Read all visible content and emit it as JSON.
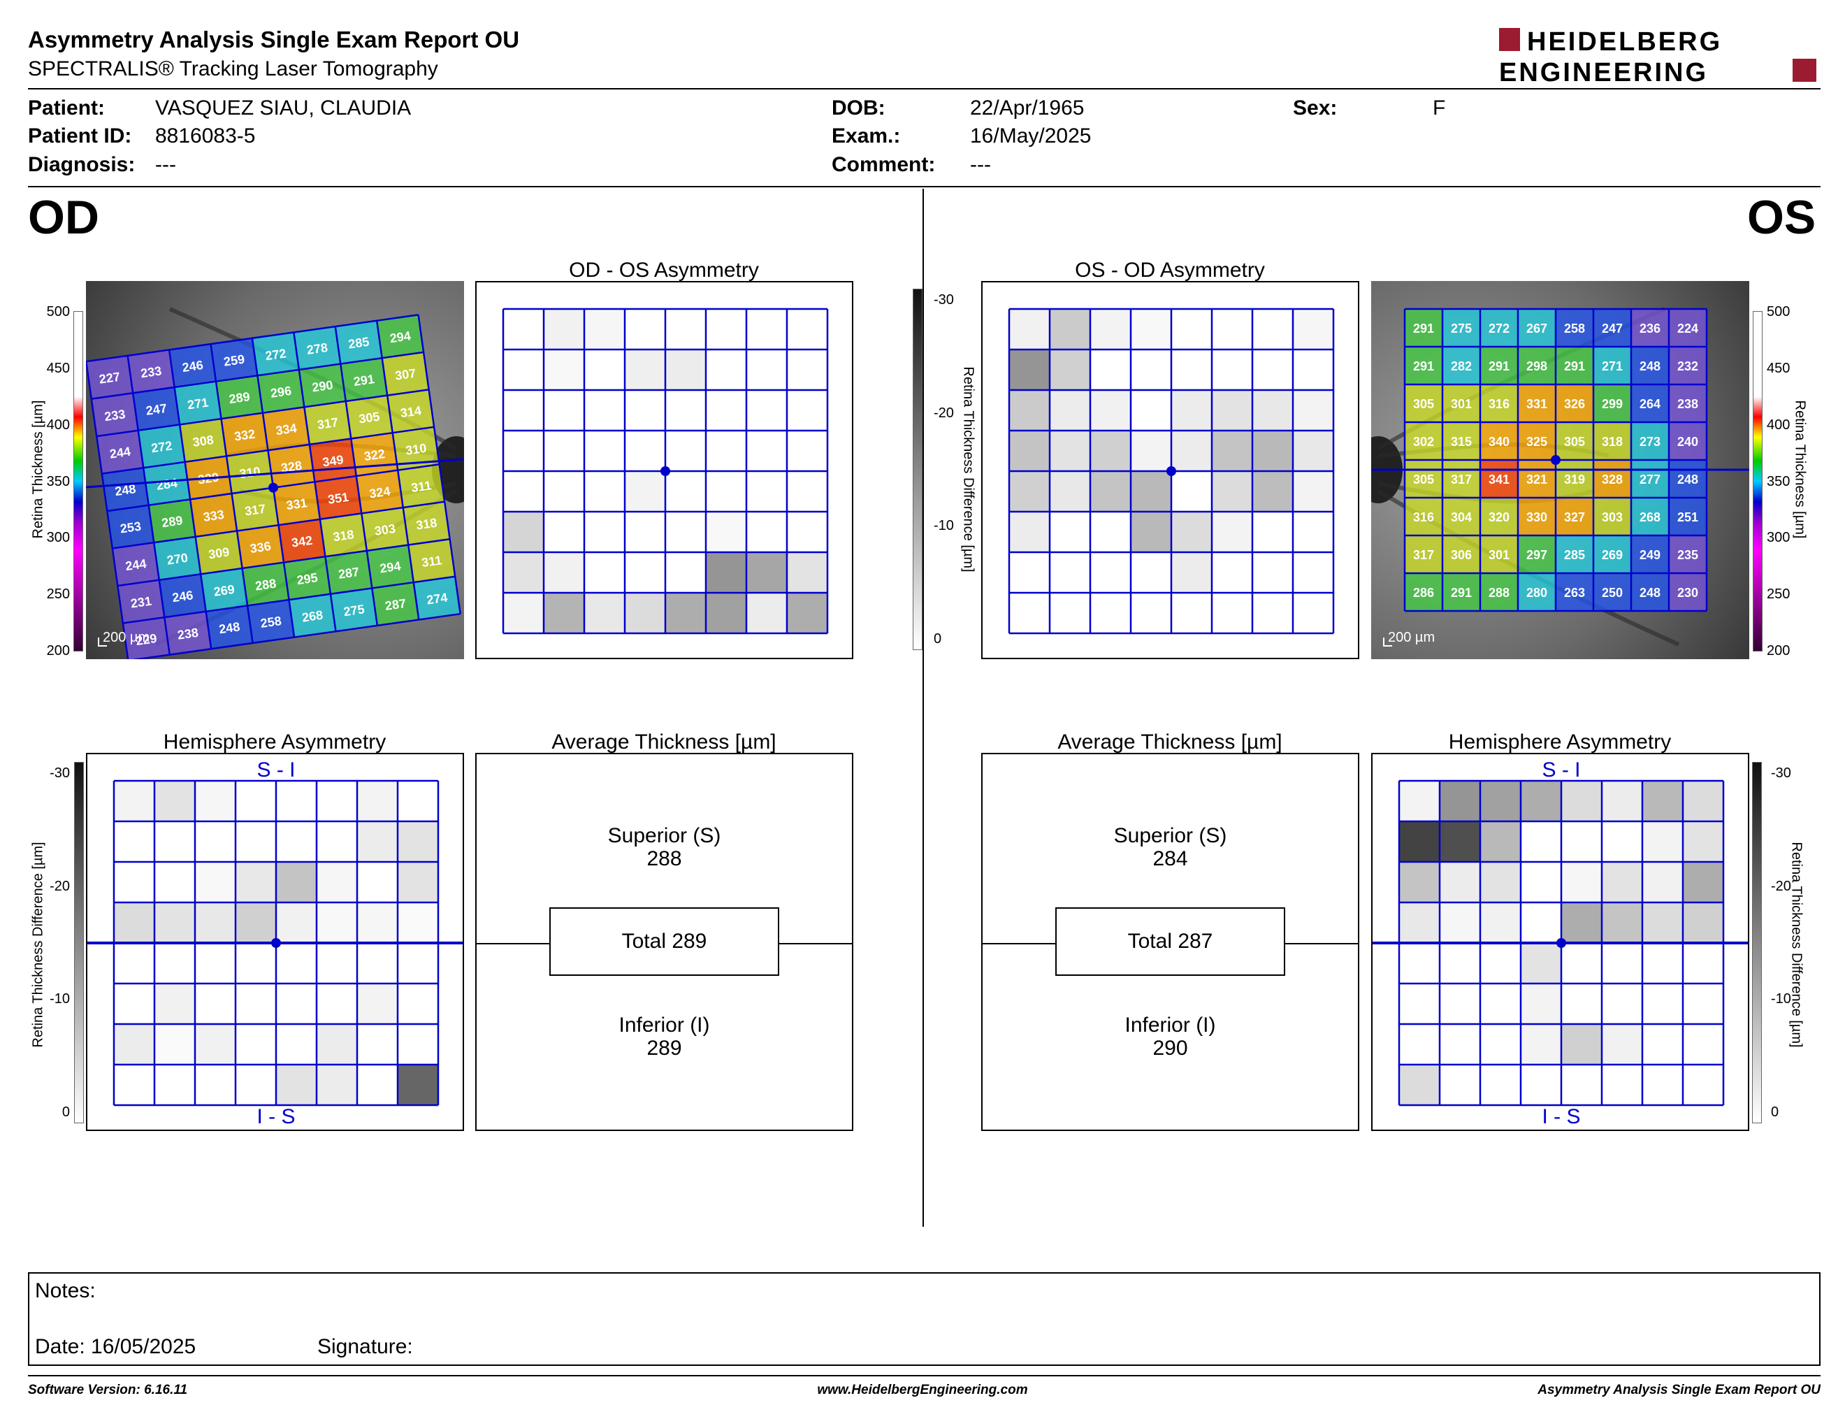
{
  "header": {
    "title": "Asymmetry Analysis Single Exam Report OU",
    "subtitle": "SPECTRALIS® Tracking Laser Tomography",
    "logo_line1": "HEIDELBERG",
    "logo_line2": "ENGINEERING"
  },
  "patient": {
    "patient_label": "Patient:",
    "patient_value": "VASQUEZ SIAU, CLAUDIA",
    "id_label": "Patient ID:",
    "id_value": "8816083-5",
    "diagnosis_label": "Diagnosis:",
    "diagnosis_value": "---",
    "dob_label": "DOB:",
    "dob_value": "22/Apr/1965",
    "exam_label": "Exam.:",
    "exam_value": "16/May/2025",
    "comment_label": "Comment:",
    "comment_value": "---",
    "sex_label": "Sex:",
    "sex_value": "F"
  },
  "od": {
    "eye_label": "OD",
    "asym_title": "OD - OS Asymmetry",
    "hemi_title": "Hemisphere Asymmetry",
    "hemi_top": "S - I",
    "hemi_bottom": "I - S",
    "avg_title": "Average Thickness [µm]",
    "superior_label": "Superior (S)",
    "superior_value": "288",
    "total_label": "Total 289",
    "inferior_label": "Inferior (I)",
    "inferior_value": "289",
    "scale_label": "200 µm",
    "grid": [
      [
        227,
        233,
        246,
        259,
        272,
        278,
        285,
        294
      ],
      [
        233,
        247,
        271,
        289,
        296,
        290,
        291,
        307
      ],
      [
        244,
        272,
        308,
        332,
        334,
        317,
        305,
        314
      ],
      [
        248,
        284,
        329,
        310,
        328,
        349,
        322,
        310
      ],
      [
        253,
        289,
        333,
        317,
        331,
        351,
        324,
        311
      ],
      [
        244,
        270,
        309,
        336,
        342,
        318,
        303,
        318
      ],
      [
        231,
        246,
        269,
        288,
        295,
        287,
        294,
        311
      ],
      [
        229,
        238,
        248,
        258,
        268,
        275,
        287,
        274
      ]
    ],
    "asym_gray": [
      [
        0,
        0.06,
        0.04,
        0,
        0,
        0,
        0,
        0
      ],
      [
        0,
        0.03,
        0,
        0.07,
        0.08,
        0,
        0,
        0
      ],
      [
        0,
        0,
        0,
        0,
        0,
        0,
        0,
        0
      ],
      [
        0,
        0,
        0,
        0,
        0,
        0,
        0,
        0
      ],
      [
        0,
        0,
        0,
        0.05,
        0,
        0,
        0,
        0
      ],
      [
        0.18,
        0,
        0,
        0,
        0,
        0.03,
        0,
        0
      ],
      [
        0.12,
        0.06,
        0,
        0,
        0,
        0.45,
        0.38,
        0.12
      ],
      [
        0.05,
        0.32,
        0.1,
        0.15,
        0.35,
        0.4,
        0.08,
        0.35
      ]
    ],
    "hemi_gray": [
      [
        0.05,
        0.12,
        0.04,
        0,
        0,
        0,
        0.05,
        0
      ],
      [
        0,
        0,
        0,
        0,
        0,
        0,
        0.08,
        0.12
      ],
      [
        0,
        0,
        0.03,
        0.1,
        0.25,
        0.04,
        0,
        0.12
      ],
      [
        0.15,
        0.12,
        0.1,
        0.2,
        0.06,
        0.03,
        0.04,
        0.02
      ],
      [
        0,
        0,
        0,
        0,
        0,
        0,
        0,
        0
      ],
      [
        0,
        0.06,
        0,
        0,
        0,
        0,
        0.05,
        0
      ],
      [
        0.08,
        0.02,
        0.06,
        0,
        0,
        0.08,
        0,
        0
      ],
      [
        0,
        0,
        0,
        0,
        0.12,
        0.08,
        0,
        0.65
      ]
    ]
  },
  "os": {
    "eye_label": "OS",
    "asym_title": "OS - OD Asymmetry",
    "hemi_title": "Hemisphere Asymmetry",
    "hemi_top": "S - I",
    "hemi_bottom": "I - S",
    "avg_title": "Average Thickness [µm]",
    "superior_label": "Superior (S)",
    "superior_value": "284",
    "total_label": "Total 287",
    "inferior_label": "Inferior (I)",
    "inferior_value": "290",
    "scale_label": "200 µm",
    "grid": [
      [
        291,
        275,
        272,
        267,
        258,
        247,
        236,
        224
      ],
      [
        291,
        282,
        291,
        298,
        291,
        271,
        248,
        232
      ],
      [
        305,
        301,
        316,
        331,
        326,
        299,
        264,
        238
      ],
      [
        302,
        315,
        340,
        325,
        305,
        318,
        273,
        240
      ],
      [
        305,
        317,
        341,
        321,
        319,
        328,
        277,
        248
      ],
      [
        316,
        304,
        320,
        330,
        327,
        303,
        268,
        251
      ],
      [
        317,
        306,
        301,
        297,
        285,
        269,
        249,
        235
      ],
      [
        286,
        291,
        288,
        280,
        263,
        250,
        248,
        230
      ]
    ],
    "asym_gray": [
      [
        0.06,
        0.22,
        0.05,
        0.03,
        0,
        0,
        0,
        0.04
      ],
      [
        0.45,
        0.2,
        0,
        0,
        0,
        0,
        0,
        0
      ],
      [
        0.22,
        0.08,
        0.06,
        0,
        0.08,
        0.12,
        0.1,
        0.05
      ],
      [
        0.25,
        0.12,
        0.2,
        0.05,
        0.08,
        0.25,
        0.3,
        0.1
      ],
      [
        0.2,
        0.1,
        0.25,
        0.3,
        0,
        0.15,
        0.28,
        0.05
      ],
      [
        0.08,
        0,
        0,
        0.3,
        0.15,
        0.05,
        0,
        0
      ],
      [
        0,
        0,
        0,
        0,
        0.08,
        0,
        0,
        0
      ],
      [
        0,
        0,
        0,
        0,
        0,
        0,
        0,
        0
      ]
    ],
    "hemi_gray": [
      [
        0.05,
        0.45,
        0.4,
        0.35,
        0.15,
        0.08,
        0.3,
        0.15
      ],
      [
        0.8,
        0.75,
        0.3,
        0,
        0,
        0,
        0.05,
        0.12
      ],
      [
        0.25,
        0.08,
        0.12,
        0,
        0.04,
        0.12,
        0.06,
        0.35
      ],
      [
        0.1,
        0.04,
        0.06,
        0,
        0.35,
        0.25,
        0.15,
        0.2
      ],
      [
        0,
        0,
        0,
        0.12,
        0,
        0,
        0,
        0
      ],
      [
        0,
        0,
        0,
        0.05,
        0,
        0,
        0,
        0
      ],
      [
        0,
        0,
        0,
        0.05,
        0.2,
        0.06,
        0,
        0
      ],
      [
        0.15,
        0,
        0,
        0,
        0,
        0,
        0,
        0
      ]
    ]
  },
  "thickness_axis": {
    "label": "Retina Thickness [µm]",
    "ticks": [
      "500",
      "450",
      "400",
      "350",
      "300",
      "250",
      "200"
    ]
  },
  "diff_axis": {
    "label": "Retina Thickness Difference [µm]",
    "ticks": [
      "-30",
      "-20",
      "-10",
      "0"
    ]
  },
  "notes": {
    "notes_label": "Notes:",
    "date_label": "Date: 16/05/2025",
    "signature_label": "Signature:"
  },
  "footer": {
    "left": "Software Version: 6.16.11",
    "center": "www.HeidelbergEngineering.com",
    "right": "Asymmetry Analysis Single Exam Report OU"
  },
  "colors": {
    "grid_blue": "#0000cc",
    "logo_red": "#9b1b30"
  }
}
